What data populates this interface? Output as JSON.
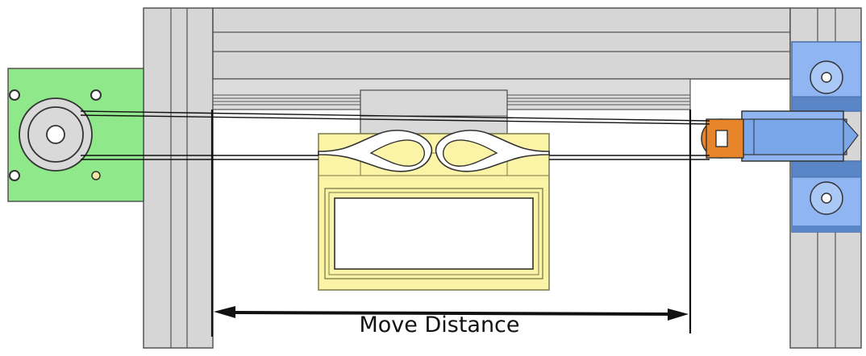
{
  "caption": "Move Distance",
  "colors": {
    "background": "#ffffff",
    "frame": "#d4d4d4",
    "frame_line": "#4a4a4a",
    "motor_plate": "#8ee88a",
    "carriage": "#fbf3a6",
    "carriage_outline": "#7a7a4a",
    "block": "#d8d8d8",
    "end_bracket": "#8fb6f2",
    "bracket_dark": "#5a86c8",
    "idler": "#e8852a",
    "belt": "#111111"
  },
  "icons": {
    "motor": "stepper-motor-icon",
    "pulley": "drive-pulley-icon",
    "idler": "idler-pulley-icon",
    "bracket": "end-bracket-icon"
  }
}
